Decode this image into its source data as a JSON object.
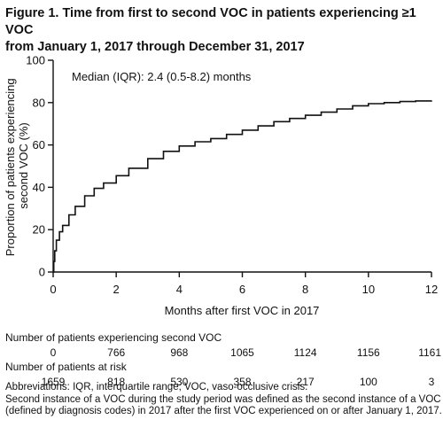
{
  "figure": {
    "title_line1": "Figure 1. Time from first to second VOC in patients experiencing ≥1 VOC",
    "title_line2": "from January 1, 2017 through December 31, 2017"
  },
  "chart_data": {
    "type": "line",
    "xlabel": "Months after first VOC in 2017",
    "ylabel_line1": "Proportion of patients experiencing",
    "ylabel_line2": "second VOC (%)",
    "xlim": [
      0,
      12
    ],
    "ylim": [
      0,
      100
    ],
    "xticks": [
      0,
      2,
      4,
      6,
      8,
      10,
      12
    ],
    "yticks": [
      0,
      20,
      40,
      60,
      80,
      100
    ],
    "grid": false,
    "annotation": "Median (IQR): 2.4 (0.5-8.2) months",
    "series": [
      {
        "x": [
          0,
          0.02,
          0.05,
          0.1,
          0.2,
          0.3,
          0.5,
          0.7,
          1.0,
          1.3,
          1.6,
          2.0,
          2.4,
          3.0,
          3.5,
          4.0,
          4.5,
          5.0,
          5.5,
          6.0,
          6.5,
          7.0,
          7.5,
          8.0,
          8.5,
          9.0,
          9.5,
          10.0,
          10.5,
          11.0,
          11.5,
          12.0
        ],
        "y": [
          0,
          5,
          10,
          15,
          19,
          22,
          27,
          31,
          36,
          39.5,
          42,
          45.5,
          49,
          53.5,
          57,
          59.5,
          61.5,
          63,
          65,
          67,
          69,
          71,
          72.5,
          74,
          75.5,
          77,
          78.5,
          79.5,
          80,
          80.5,
          80.8,
          81
        ]
      }
    ]
  },
  "risk_table": {
    "second_voc_label": "Number of patients experiencing second VOC",
    "second_voc_values": [
      "0",
      "766",
      "968",
      "1065",
      "1124",
      "1156",
      "1161"
    ],
    "at_risk_label": "Number of patients at risk",
    "at_risk_values": [
      "1659",
      "818",
      "530",
      "358",
      "217",
      "100",
      "3"
    ]
  },
  "footnotes": {
    "line1": "Abbreviations: IQR, interquartile range; VOC, vaso-occlusive crisis.",
    "line2": "Second instance of a VOC during the study period was defined as the second instance of a VOC",
    "line3": "(defined by diagnosis codes) in 2017 after the first VOC experienced on or after January 1, 2017."
  }
}
